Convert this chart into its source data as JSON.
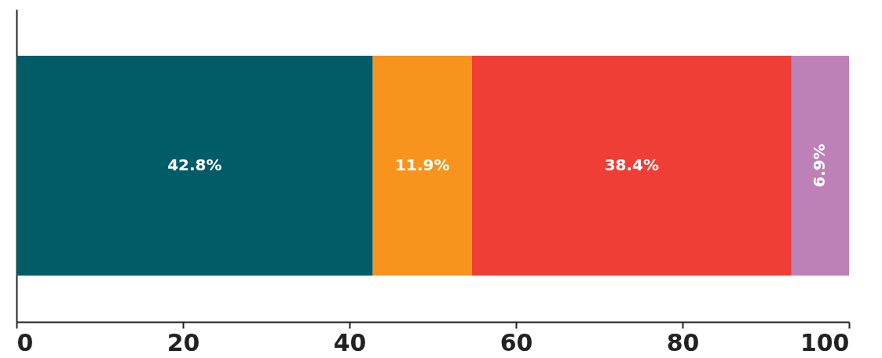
{
  "chart_data": {
    "type": "bar",
    "orientation": "horizontal",
    "stacked": true,
    "categories": [
      null
    ],
    "series": [
      {
        "color": "#005c66",
        "values": [
          42.8
        ],
        "value_labels": [
          "42.8%"
        ]
      },
      {
        "color": "#f7941e",
        "values": [
          11.9
        ],
        "value_labels": [
          "11.9%"
        ]
      },
      {
        "color": "#ef3e36",
        "values": [
          38.4
        ],
        "value_labels": [
          "38.4%"
        ]
      },
      {
        "color": "#bd80b7",
        "values": [
          6.9
        ],
        "value_labels": [
          "6.9%"
        ]
      }
    ],
    "xlim": [
      0,
      100
    ],
    "xticks": [
      0,
      20,
      40,
      60,
      80,
      100
    ],
    "grid": false
  }
}
